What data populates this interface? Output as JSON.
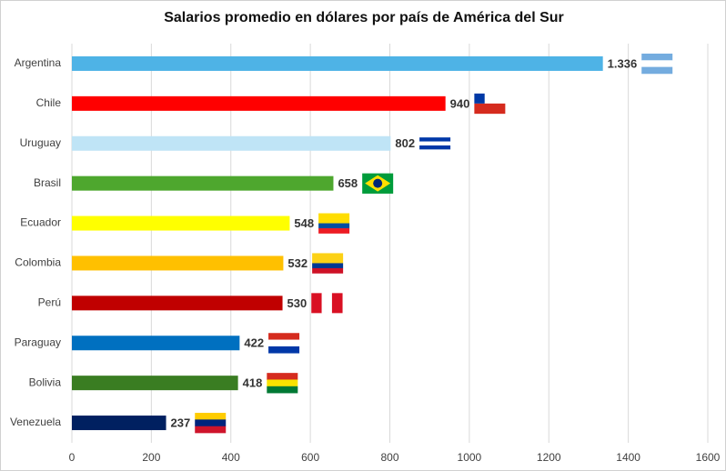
{
  "chart_data": {
    "type": "bar",
    "orientation": "horizontal",
    "title": "Salarios promedio en dólares por país de América del Sur",
    "categories": [
      "Argentina",
      "Chile",
      "Uruguay",
      "Brasil",
      "Ecuador",
      "Colombia",
      "Perú",
      "Paraguay",
      "Bolivia",
      "Venezuela"
    ],
    "values": [
      1336,
      940,
      802,
      658,
      548,
      532,
      530,
      422,
      418,
      237
    ],
    "value_labels": [
      "1.336",
      "940",
      "802",
      "658",
      "548",
      "532",
      "530",
      "422",
      "418",
      "237"
    ],
    "colors": [
      "#4eb3e6",
      "#ff0000",
      "#bfe4f6",
      "#4ea72e",
      "#ffff00",
      "#ffc000",
      "#c00000",
      "#0070c0",
      "#3a7d22",
      "#002060"
    ],
    "xlim": [
      0,
      1600
    ],
    "xticks": [
      0,
      200,
      400,
      600,
      800,
      1000,
      1200,
      1400,
      1600
    ],
    "grid": true
  }
}
